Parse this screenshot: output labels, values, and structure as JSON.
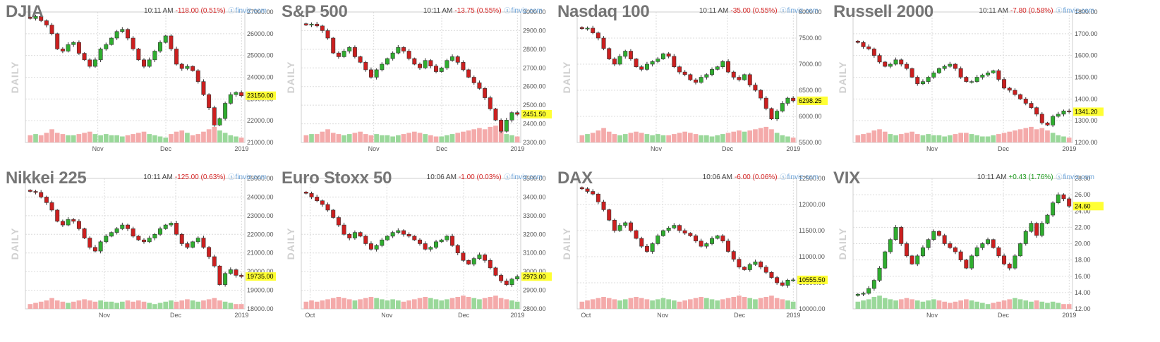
{
  "colors": {
    "up": "#2fae2f",
    "down": "#cc1f1f",
    "vol_up": "#9ad89a",
    "vol_down": "#f4aaaa",
    "grid": "#dcdcdc",
    "price_box": "#ffff33"
  },
  "source_label": "finviz.com",
  "period_label": "DAILY",
  "chart_data": [
    {
      "type": "candlestick",
      "title": "DJIA",
      "time": "10:11 AM",
      "change": "-118.00 (0.51%)",
      "direction": "down",
      "yticks": [
        "27000.00",
        "26000.00",
        "25000.00",
        "24000.00",
        "23000.00",
        "22000.00",
        "21000.00"
      ],
      "ylim": [
        21000,
        27000
      ],
      "xticks": [
        {
          "label": "Nov",
          "pos": 0.33
        },
        {
          "label": "Dec",
          "pos": 0.64
        },
        {
          "label": "2019",
          "pos": 0.985
        }
      ],
      "last": "23150.00",
      "last_value": 23150,
      "path": [
        26700,
        26800,
        26600,
        26400,
        26000,
        25300,
        25200,
        25500,
        25600,
        25100,
        24800,
        24500,
        24800,
        25300,
        25500,
        25800,
        26100,
        26200,
        25800,
        25300,
        24800,
        24500,
        24800,
        25200,
        25600,
        25900,
        25300,
        24600,
        24400,
        24500,
        24300,
        23800,
        23200,
        22600,
        21800,
        22100,
        22800,
        23200,
        23300,
        23150
      ],
      "volume": [
        0.3,
        0.35,
        0.3,
        0.4,
        0.55,
        0.4,
        0.35,
        0.3,
        0.3,
        0.35,
        0.4,
        0.45,
        0.35,
        0.3,
        0.35,
        0.3,
        0.3,
        0.25,
        0.3,
        0.35,
        0.4,
        0.45,
        0.35,
        0.3,
        0.25,
        0.2,
        0.35,
        0.45,
        0.5,
        0.4,
        0.3,
        0.35,
        0.45,
        0.55,
        0.65,
        0.5,
        0.4,
        0.3,
        0.25,
        0.2
      ]
    },
    {
      "type": "candlestick",
      "title": "S&P 500",
      "time": "10:11 AM",
      "change": "-13.75 (0.55%)",
      "direction": "down",
      "yticks": [
        "3000.00",
        "2900.00",
        "2800.00",
        "2700.00",
        "2600.00",
        "2500.00",
        "2400.00",
        "2300.00"
      ],
      "ylim": [
        2300,
        3000
      ],
      "xticks": [
        {
          "label": "Nov",
          "pos": 0.33
        },
        {
          "label": "Dec",
          "pos": 0.64
        },
        {
          "label": "2019",
          "pos": 0.985
        }
      ],
      "last": "2451.50",
      "last_value": 2451.5,
      "path": [
        2930,
        2935,
        2925,
        2900,
        2860,
        2780,
        2760,
        2790,
        2810,
        2760,
        2730,
        2690,
        2650,
        2690,
        2720,
        2750,
        2780,
        2810,
        2790,
        2750,
        2720,
        2700,
        2740,
        2710,
        2680,
        2700,
        2740,
        2760,
        2730,
        2690,
        2650,
        2620,
        2590,
        2540,
        2480,
        2420,
        2360,
        2420,
        2460,
        2451
      ],
      "volume": [
        0.3,
        0.35,
        0.35,
        0.45,
        0.55,
        0.4,
        0.35,
        0.3,
        0.35,
        0.4,
        0.45,
        0.35,
        0.3,
        0.35,
        0.3,
        0.3,
        0.25,
        0.3,
        0.35,
        0.4,
        0.45,
        0.4,
        0.35,
        0.3,
        0.25,
        0.25,
        0.3,
        0.35,
        0.4,
        0.45,
        0.5,
        0.55,
        0.6,
        0.55,
        0.65,
        0.7,
        0.5,
        0.35,
        0.3,
        0.25
      ]
    },
    {
      "type": "candlestick",
      "title": "Nasdaq 100",
      "time": "10:11 AM",
      "change": "-35.00 (0.55%)",
      "direction": "down",
      "yticks": [
        "8000.00",
        "7500.00",
        "7000.00",
        "6500.00",
        "6000.00",
        "5500.00"
      ],
      "ylim": [
        5500,
        8000
      ],
      "xticks": [
        {
          "label": "Nov",
          "pos": 0.36
        },
        {
          "label": "Dec",
          "pos": 0.685
        },
        {
          "label": "2019",
          "pos": 0.985
        }
      ],
      "last": "6298.25",
      "last_value": 6298.25,
      "path": [
        7680,
        7690,
        7600,
        7500,
        7300,
        7100,
        7000,
        7150,
        7250,
        7100,
        6950,
        6900,
        7000,
        7050,
        7100,
        7200,
        7150,
        6950,
        6850,
        6800,
        6700,
        6650,
        6750,
        6800,
        6900,
        6950,
        7050,
        6850,
        6750,
        6700,
        6800,
        6600,
        6500,
        6350,
        6150,
        5950,
        6100,
        6250,
        6350,
        6298
      ],
      "volume": [
        0.3,
        0.35,
        0.4,
        0.5,
        0.6,
        0.45,
        0.35,
        0.3,
        0.35,
        0.4,
        0.45,
        0.4,
        0.35,
        0.3,
        0.35,
        0.3,
        0.3,
        0.35,
        0.4,
        0.45,
        0.4,
        0.35,
        0.3,
        0.3,
        0.25,
        0.3,
        0.35,
        0.4,
        0.45,
        0.5,
        0.45,
        0.5,
        0.55,
        0.6,
        0.65,
        0.55,
        0.4,
        0.3,
        0.25,
        0.2
      ]
    },
    {
      "type": "candlestick",
      "title": "Russell 2000",
      "time": "10:11 AM",
      "change": "-7.80 (0.58%)",
      "direction": "down",
      "yticks": [
        "1800.00",
        "1700.00",
        "1600.00",
        "1500.00",
        "1400.00",
        "1300.00",
        "1200.00"
      ],
      "ylim": [
        1200,
        1800
      ],
      "xticks": [
        {
          "label": "Nov",
          "pos": 0.36
        },
        {
          "label": "Dec",
          "pos": 0.685
        },
        {
          "label": "2019",
          "pos": 0.985
        }
      ],
      "last": "1341.20",
      "last_value": 1341.2,
      "path": [
        1660,
        1640,
        1630,
        1600,
        1570,
        1550,
        1560,
        1580,
        1560,
        1540,
        1500,
        1470,
        1480,
        1500,
        1520,
        1540,
        1550,
        1560,
        1540,
        1500,
        1480,
        1480,
        1500,
        1510,
        1520,
        1530,
        1490,
        1450,
        1440,
        1420,
        1400,
        1380,
        1360,
        1330,
        1290,
        1280,
        1320,
        1330,
        1345,
        1341
      ],
      "volume": [
        0.3,
        0.35,
        0.4,
        0.5,
        0.55,
        0.45,
        0.35,
        0.3,
        0.35,
        0.4,
        0.45,
        0.35,
        0.3,
        0.35,
        0.3,
        0.3,
        0.25,
        0.3,
        0.35,
        0.4,
        0.4,
        0.35,
        0.3,
        0.25,
        0.25,
        0.3,
        0.35,
        0.4,
        0.45,
        0.5,
        0.55,
        0.6,
        0.65,
        0.55,
        0.6,
        0.5,
        0.4,
        0.3,
        0.25,
        0.2
      ]
    },
    {
      "type": "candlestick",
      "title": "Nikkei 225",
      "time": "10:11 AM",
      "change": "-125.00 (0.63%)",
      "direction": "down",
      "yticks": [
        "25000.00",
        "24000.00",
        "23000.00",
        "22000.00",
        "21000.00",
        "20000.00",
        "19000.00",
        "18000.00"
      ],
      "ylim": [
        18000,
        25000
      ],
      "xticks": [
        {
          "label": "Nov",
          "pos": 0.36
        },
        {
          "label": "Dec",
          "pos": 0.685
        },
        {
          "label": "2019",
          "pos": 0.985
        }
      ],
      "last": "19735.00",
      "last_value": 19735,
      "path": [
        24300,
        24250,
        24000,
        23700,
        23300,
        22700,
        22500,
        22800,
        22700,
        22300,
        21800,
        21300,
        21100,
        21600,
        21900,
        22100,
        22300,
        22500,
        22300,
        21900,
        21700,
        21600,
        21800,
        22000,
        22300,
        22500,
        22600,
        22000,
        21500,
        21300,
        21600,
        21800,
        21300,
        20800,
        20300,
        19300,
        19900,
        20100,
        19800,
        19735
      ],
      "volume": [
        0.2,
        0.25,
        0.3,
        0.35,
        0.45,
        0.35,
        0.3,
        0.25,
        0.3,
        0.35,
        0.4,
        0.35,
        0.3,
        0.35,
        0.3,
        0.3,
        0.25,
        0.3,
        0.35,
        0.3,
        0.35,
        0.3,
        0.25,
        0.2,
        0.25,
        0.3,
        0.35,
        0.3,
        0.35,
        0.4,
        0.35,
        0.3,
        0.35,
        0.4,
        0.45,
        0.35,
        0.3,
        0.25,
        0.2,
        0.2
      ]
    },
    {
      "type": "candlestick",
      "title": "Euro Stoxx 50",
      "time": "10:06 AM",
      "change": "-1.00 (0.03%)",
      "direction": "down",
      "yticks": [
        "3500.00",
        "3400.00",
        "3300.00",
        "3200.00",
        "3100.00",
        "3000.00",
        "2900.00",
        "2800.00"
      ],
      "ylim": [
        2800,
        3500
      ],
      "xticks": [
        {
          "label": "Oct",
          "pos": 0.04
        },
        {
          "label": "Nov",
          "pos": 0.39
        },
        {
          "label": "Dec",
          "pos": 0.74
        },
        {
          "label": "2019",
          "pos": 0.985
        }
      ],
      "last": "2973.00",
      "last_value": 2973,
      "path": [
        3420,
        3400,
        3380,
        3360,
        3330,
        3290,
        3250,
        3200,
        3180,
        3210,
        3190,
        3150,
        3120,
        3140,
        3170,
        3190,
        3210,
        3220,
        3200,
        3190,
        3170,
        3150,
        3120,
        3130,
        3160,
        3170,
        3190,
        3140,
        3100,
        3060,
        3040,
        3070,
        3090,
        3060,
        3020,
        2980,
        2950,
        2930,
        2960,
        2973
      ],
      "volume": [
        0.3,
        0.35,
        0.3,
        0.35,
        0.4,
        0.45,
        0.5,
        0.45,
        0.4,
        0.35,
        0.4,
        0.45,
        0.5,
        0.45,
        0.4,
        0.35,
        0.4,
        0.35,
        0.3,
        0.35,
        0.4,
        0.45,
        0.5,
        0.45,
        0.4,
        0.35,
        0.4,
        0.45,
        0.5,
        0.55,
        0.5,
        0.45,
        0.4,
        0.45,
        0.5,
        0.55,
        0.45,
        0.4,
        0.35,
        0.3
      ]
    },
    {
      "type": "candlestick",
      "title": "DAX",
      "time": "10:06 AM",
      "change": "-6.00 (0.06%)",
      "direction": "down",
      "yticks": [
        "12500.00",
        "12000.00",
        "11500.00",
        "11000.00",
        "10500.00",
        "10000.00"
      ],
      "ylim": [
        10000,
        12500
      ],
      "xticks": [
        {
          "label": "Oct",
          "pos": 0.04
        },
        {
          "label": "Nov",
          "pos": 0.39
        },
        {
          "label": "Dec",
          "pos": 0.74
        },
        {
          "label": "2019",
          "pos": 0.985
        }
      ],
      "last": "10555.50",
      "last_value": 10555.5,
      "path": [
        12300,
        12250,
        12200,
        12050,
        11900,
        11700,
        11500,
        11600,
        11650,
        11500,
        11350,
        11200,
        11100,
        11250,
        11400,
        11500,
        11550,
        11600,
        11500,
        11450,
        11400,
        11300,
        11200,
        11250,
        11350,
        11400,
        11300,
        11100,
        10950,
        10800,
        10750,
        10850,
        10900,
        10800,
        10700,
        10600,
        10500,
        10450,
        10550,
        10555
      ],
      "volume": [
        0.3,
        0.35,
        0.4,
        0.45,
        0.5,
        0.45,
        0.4,
        0.35,
        0.4,
        0.45,
        0.5,
        0.45,
        0.4,
        0.35,
        0.4,
        0.45,
        0.4,
        0.35,
        0.3,
        0.35,
        0.4,
        0.45,
        0.5,
        0.45,
        0.4,
        0.35,
        0.4,
        0.45,
        0.5,
        0.55,
        0.5,
        0.45,
        0.4,
        0.45,
        0.5,
        0.55,
        0.45,
        0.4,
        0.35,
        0.3
      ]
    },
    {
      "type": "candlestick",
      "title": "VIX",
      "time": "10:11 AM",
      "change": "+0.43 (1.76%)",
      "direction": "up",
      "yticks": [
        "28.00",
        "26.00",
        "24.00",
        "22.00",
        "20.00",
        "18.00",
        "16.00",
        "14.00",
        "12.00"
      ],
      "ylim": [
        12,
        28
      ],
      "xticks": [
        {
          "label": "Nov",
          "pos": 0.36
        },
        {
          "label": "Dec",
          "pos": 0.685
        },
        {
          "label": "2019",
          "pos": 0.985
        }
      ],
      "last": "24.60",
      "last_value": 24.6,
      "path": [
        13.8,
        13.9,
        14.5,
        15.5,
        17,
        19,
        20.5,
        22,
        20,
        18.5,
        17.5,
        18.5,
        19.5,
        20.5,
        21.5,
        21,
        20,
        19.5,
        19,
        18,
        17,
        18.5,
        19.5,
        20,
        20.5,
        19.5,
        18.5,
        17.5,
        17,
        18.5,
        20,
        21.5,
        22.5,
        21,
        22.5,
        23.5,
        25,
        26,
        25.5,
        24.6
      ],
      "volume": [
        0.3,
        0.35,
        0.4,
        0.5,
        0.55,
        0.45,
        0.4,
        0.35,
        0.4,
        0.45,
        0.4,
        0.35,
        0.3,
        0.35,
        0.4,
        0.35,
        0.3,
        0.25,
        0.3,
        0.35,
        0.4,
        0.35,
        0.3,
        0.25,
        0.2,
        0.25,
        0.3,
        0.35,
        0.4,
        0.45,
        0.4,
        0.35,
        0.3,
        0.35,
        0.3,
        0.25,
        0.3,
        0.25,
        0.2,
        0.2
      ]
    }
  ]
}
